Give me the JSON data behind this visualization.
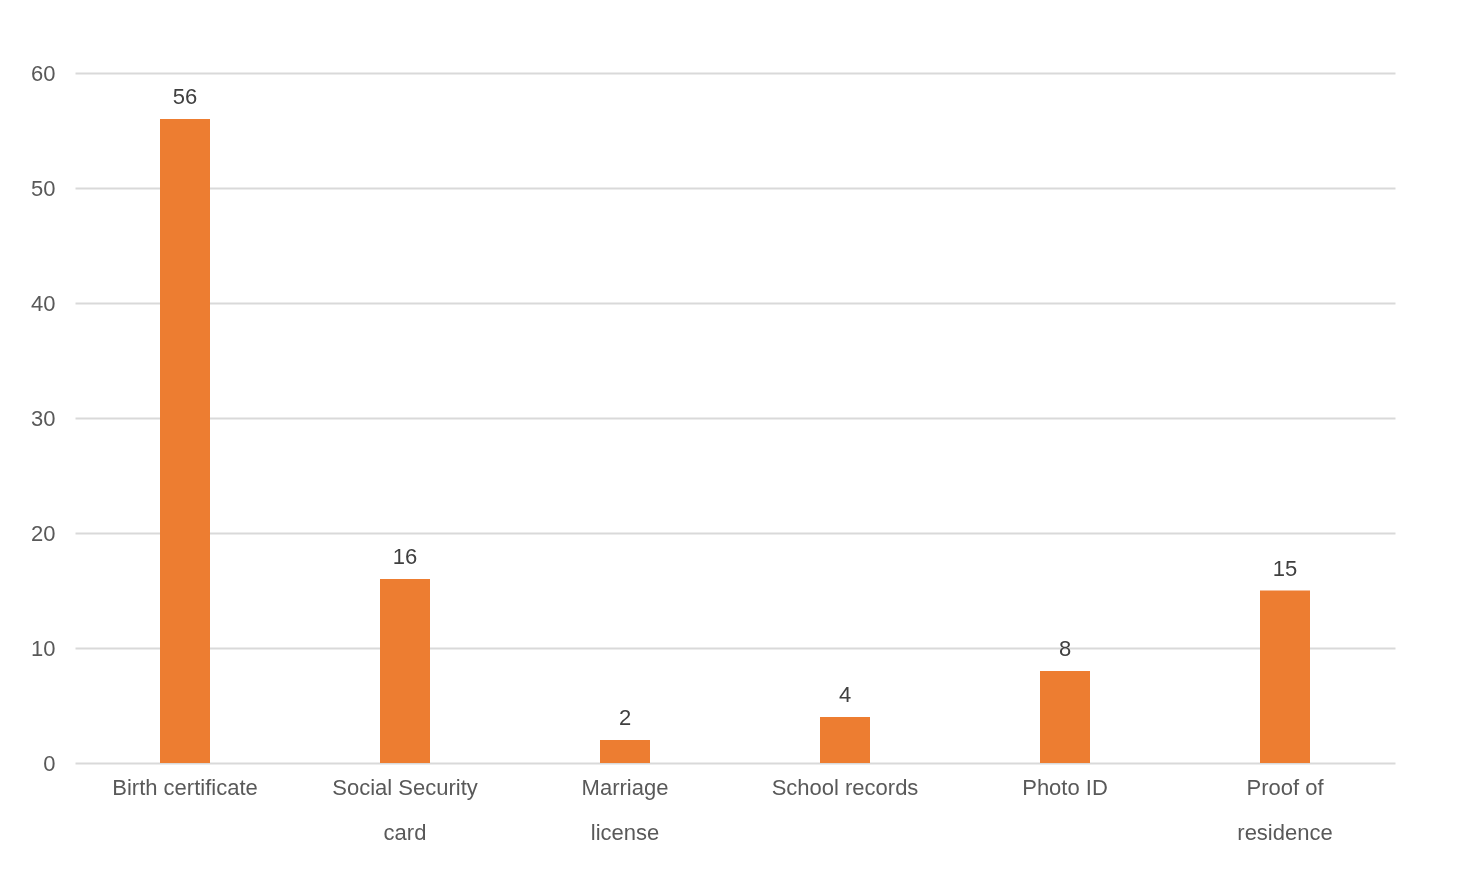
{
  "chart_data": {
    "type": "bar",
    "categories": [
      "Birth certificate",
      "Social Security card",
      "Marriage license",
      "School records",
      "Photo ID",
      "Proof of residence"
    ],
    "values": [
      56,
      16,
      2,
      4,
      8,
      15
    ],
    "color": "#ed7d31",
    "ylim": [
      0,
      60
    ],
    "yticks": [
      0,
      10,
      20,
      30,
      40,
      50,
      60
    ],
    "grid": "y",
    "data_labels": true
  }
}
